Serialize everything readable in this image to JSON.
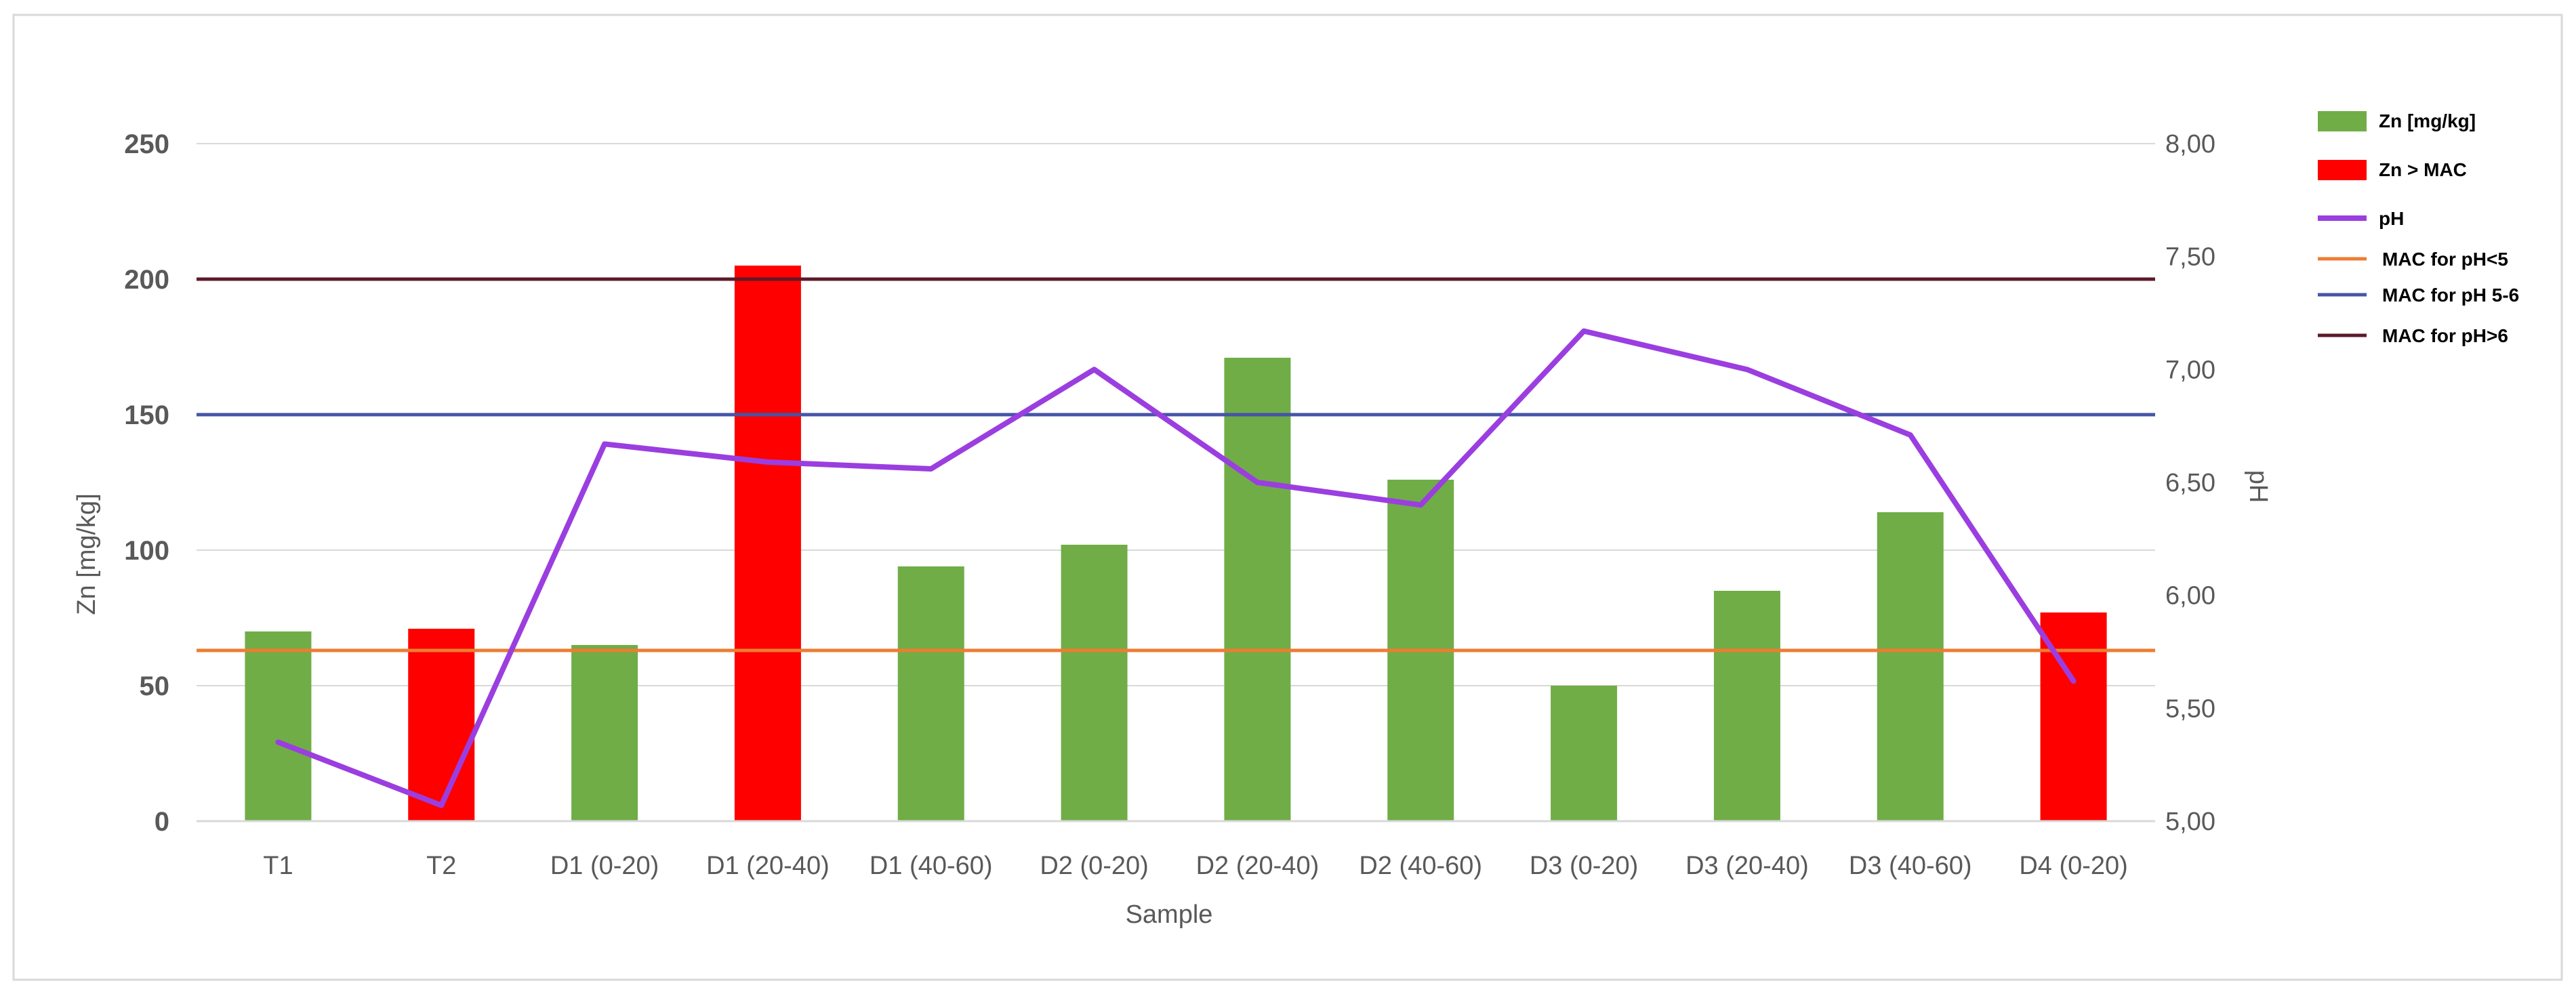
{
  "chart_data": {
    "type": "bar",
    "xlabel": "Sample",
    "ylabel": "Zn [mg/kg]",
    "y2label": "pH",
    "ylim": [
      0,
      250
    ],
    "y2lim": [
      5.0,
      8.0
    ],
    "yticks": [
      "0",
      "50",
      "100",
      "150",
      "200",
      "250"
    ],
    "y2ticks": [
      "5,00",
      "5,50",
      "6,00",
      "6,50",
      "7,00",
      "7,50",
      "8,00"
    ],
    "categories": [
      "T1",
      "T2",
      "D1 (0-20)",
      "D1 (20-40)",
      "D1 (40-60)",
      "D2 (0-20)",
      "D2 (20-40)",
      "D2 (40-60)",
      "D3 (0-20)",
      "D3 (20-40)",
      "D3 (40-60)",
      "D4 (0-20)"
    ],
    "series": [
      {
        "name": "Zn [mg/kg]",
        "kind": "bar",
        "axis": "left",
        "color": "#70ad47",
        "values": [
          70,
          null,
          65,
          null,
          94,
          102,
          171,
          126,
          50,
          85,
          114,
          null
        ]
      },
      {
        "name": "Zn > MAC",
        "kind": "bar",
        "axis": "left",
        "color": "#ff0000",
        "values": [
          null,
          71,
          null,
          205,
          null,
          null,
          null,
          null,
          null,
          null,
          null,
          77
        ]
      },
      {
        "name": "pH",
        "kind": "line",
        "axis": "right",
        "color": "#9b3ee0",
        "values": [
          5.35,
          5.07,
          6.67,
          6.59,
          6.56,
          7.0,
          6.5,
          6.4,
          7.17,
          7.0,
          6.71,
          5.62
        ]
      },
      {
        "name": "MAC for pH<5",
        "kind": "hline",
        "axis": "left",
        "color": "#ed7d31",
        "value": 63
      },
      {
        "name": "MAC for pH 5-6",
        "kind": "hline",
        "axis": "left",
        "color": "#4654a8",
        "value": 150
      },
      {
        "name": "MAC for pH>6",
        "kind": "hline",
        "axis": "left",
        "color": "#5c1a2b",
        "value": 200
      }
    ],
    "grid": true,
    "legend": "right"
  }
}
